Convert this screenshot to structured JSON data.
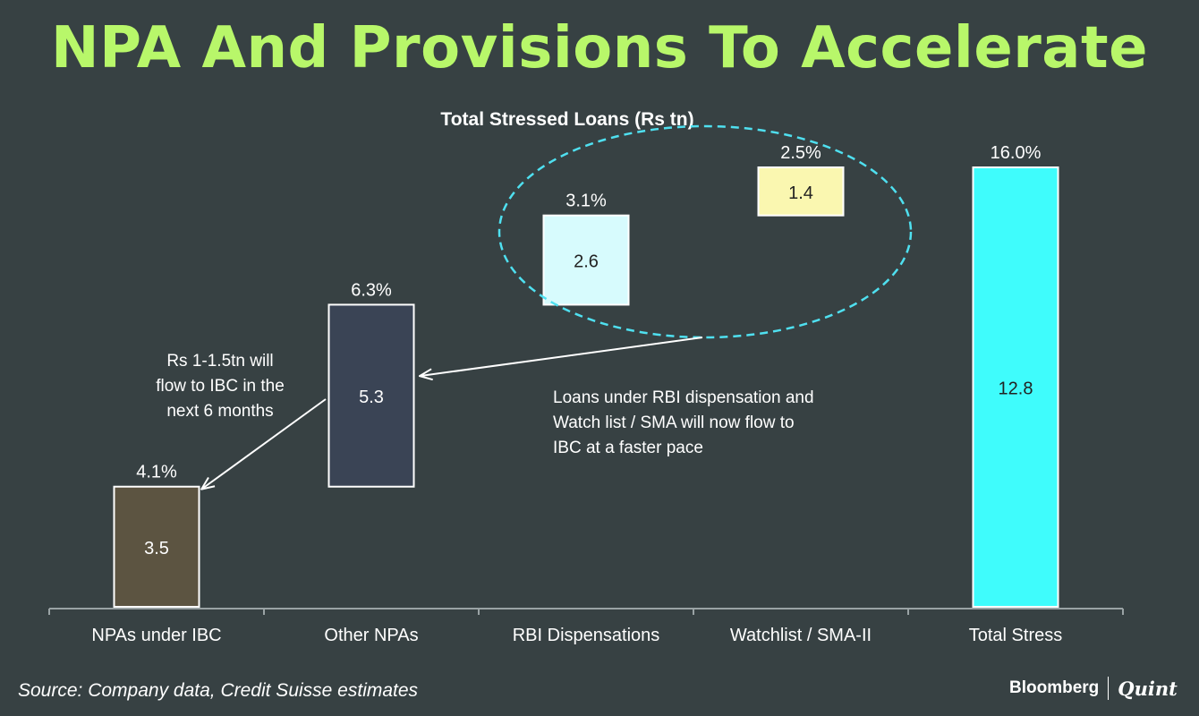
{
  "page": {
    "title": "NPA And Provisions To Accelerate",
    "source": "Source: Company data, Credit Suisse estimates",
    "brand": {
      "primary": "Bloomberg",
      "secondary": "Quint"
    }
  },
  "colors": {
    "background": "#374143",
    "title": "#b8f76a",
    "text": "#ffffff",
    "axis": "#9aa3a5",
    "ellipse": "#4fe0f0",
    "bars": [
      "#5c5441",
      "#3a4455",
      "#d7fbfd",
      "#faf7b0",
      "#3ffcfc"
    ],
    "bar_label_colors": [
      "#ffffff",
      "#ffffff",
      "#222222",
      "#222222",
      "#222222"
    ]
  },
  "chart_data": {
    "type": "waterfall",
    "title": "Total Stressed Loans (Rs tn)",
    "categories": [
      "NPAs under IBC",
      "Other NPAs",
      "RBI Dispensations",
      "Watchlist / SMA-II",
      "Total Stress"
    ],
    "values": [
      3.5,
      5.3,
      2.6,
      1.4,
      12.8
    ],
    "value_labels": [
      "3.5",
      "5.3",
      "2.6",
      "1.4",
      "12.8"
    ],
    "percent_labels": [
      "4.1%",
      "6.3%",
      "3.1%",
      "2.5%",
      "16.0%"
    ],
    "ylim": [
      0,
      12.8
    ],
    "grid": false,
    "legend": "none",
    "annotations": {
      "ibc_flow": [
        "Rs 1-1.5tn will",
        "flow to IBC in the",
        "next 6 months"
      ],
      "rbi_flow": [
        "Loans under RBI dispensation and",
        "Watch list / SMA will now  flow to",
        "IBC at a faster pace"
      ]
    }
  }
}
